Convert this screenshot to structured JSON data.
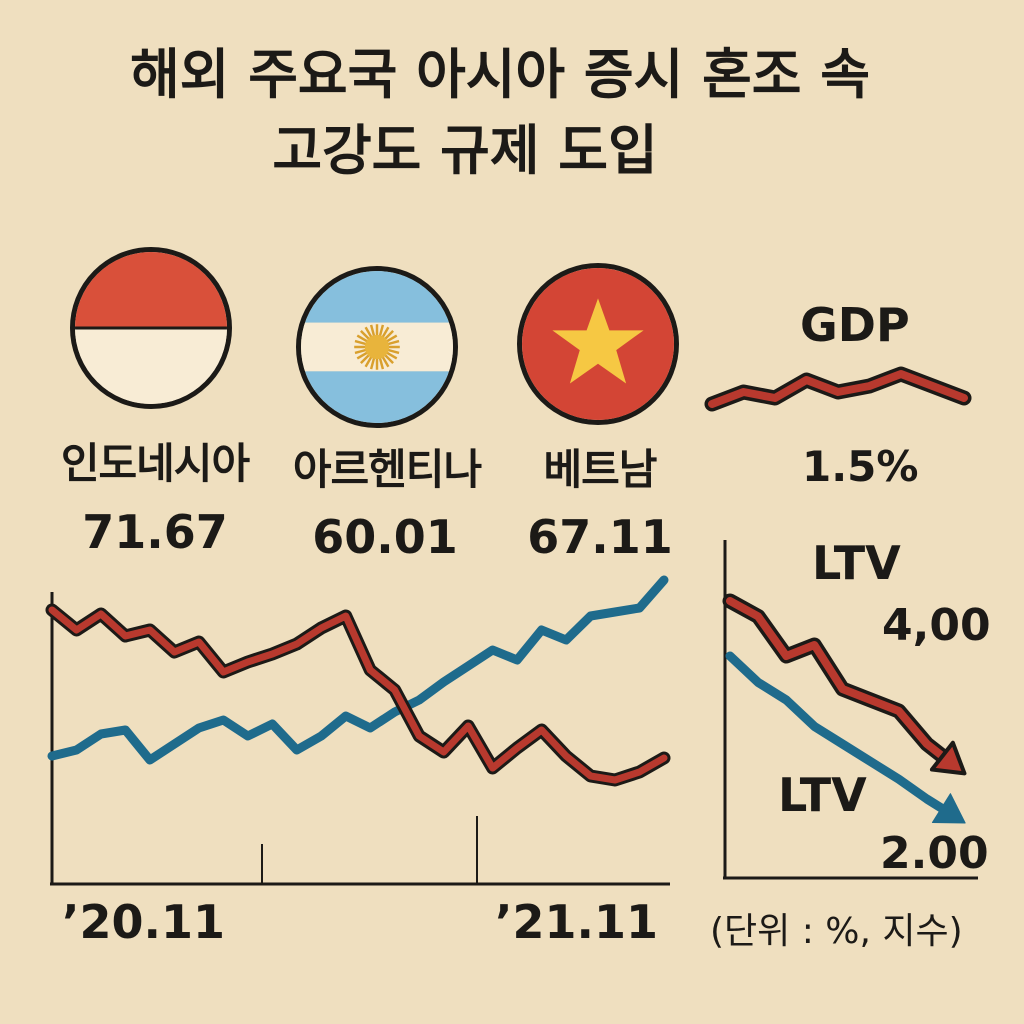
{
  "title": {
    "line1": "해외 주요국 아시아 증시 혼조 속",
    "line2": "고강도 규제 도입"
  },
  "countries": [
    {
      "name": "인도네시아",
      "value": "71.67",
      "flag": "indonesia-flag-icon"
    },
    {
      "name": "아르헨티나",
      "value": "60.01",
      "flag": "argentina-flag-icon"
    },
    {
      "name": "베트남",
      "value": "67.11",
      "flag": "vietnam-flag-icon"
    }
  ],
  "gdp": {
    "label": "GDP",
    "value": "1.5%"
  },
  "ltv_upper": {
    "label": "LTV",
    "value": "4,00"
  },
  "ltv_lower": {
    "label": "LTV",
    "value": "2.00"
  },
  "unit_note": "(단위 : %, 지수)",
  "colors": {
    "background": "#efdfbf",
    "red": "#b8392e",
    "blue": "#1f6b8c",
    "ink": "#1c1a17"
  },
  "chart_data": [
    {
      "type": "line",
      "title": "",
      "xlabel": "",
      "ylabel": "",
      "x_ticks": [
        "’20.11",
        "’21.11"
      ],
      "x_tick_positions": [
        0,
        33
      ],
      "x": [
        0,
        2,
        4,
        6,
        8,
        10,
        12,
        14,
        16,
        18,
        20,
        22,
        24,
        26,
        28,
        30,
        32,
        34,
        36,
        38,
        40,
        42,
        44,
        46,
        48,
        50
      ],
      "ylim": [
        0,
        100
      ],
      "series": [
        {
          "name": "red",
          "values": [
            95,
            85,
            93,
            82,
            85,
            74,
            79,
            64,
            69,
            73,
            78,
            86,
            92,
            65,
            55,
            32,
            24,
            37,
            16,
            26,
            35,
            22,
            12,
            10,
            14,
            21
          ]
        },
        {
          "name": "blue",
          "values": [
            22,
            25,
            33,
            35,
            20,
            28,
            36,
            40,
            32,
            38,
            25,
            32,
            42,
            36,
            44,
            50,
            59,
            67,
            75,
            70,
            85,
            80,
            92,
            94,
            96,
            110
          ]
        }
      ]
    },
    {
      "type": "line",
      "title": "GDP",
      "x": [
        0,
        1,
        2,
        3,
        4,
        5,
        6,
        7,
        8
      ],
      "ylim": [
        0,
        10
      ],
      "series": [
        {
          "name": "GDP",
          "values": [
            4,
            6,
            5,
            8,
            6,
            7,
            9,
            7,
            5
          ]
        }
      ]
    },
    {
      "type": "line",
      "title": "LTV",
      "x": [
        0,
        1,
        2,
        3,
        4,
        5,
        6,
        7,
        8
      ],
      "ylim": [
        0,
        100
      ],
      "series": [
        {
          "name": "LTV upper",
          "values": [
            95,
            88,
            70,
            75,
            55,
            50,
            45,
            30,
            20
          ]
        },
        {
          "name": "LTV lower",
          "values": [
            70,
            58,
            50,
            38,
            30,
            22,
            14,
            5,
            -3
          ]
        }
      ]
    }
  ]
}
